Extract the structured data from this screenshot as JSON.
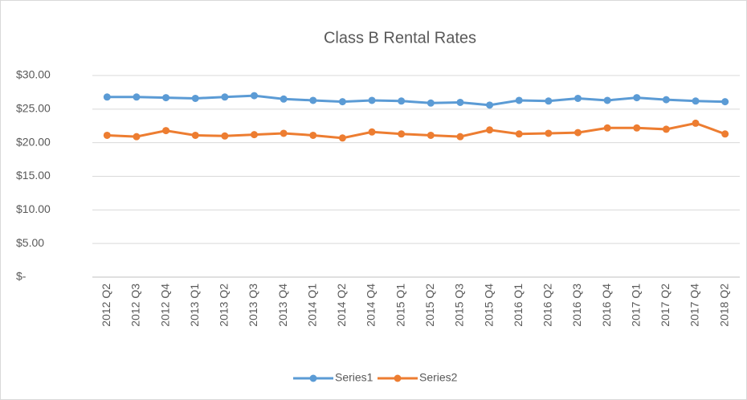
{
  "chart_data": {
    "type": "line",
    "title": "Class B Rental Rates",
    "categories": [
      "2012 Q2",
      "2012 Q3",
      "2012 Q4",
      "2013 Q1",
      "2013 Q2",
      "2013 Q3",
      "2013 Q4",
      "2014 Q1",
      "2014 Q2",
      "2014 Q4",
      "2015 Q1",
      "2015 Q2",
      "2015 Q3",
      "2015 Q4",
      "2016 Q1",
      "2016 Q2",
      "2016 Q3",
      "2016 Q4",
      "2017 Q1",
      "2017 Q2",
      "2017 Q4",
      "2018 Q2"
    ],
    "series": [
      {
        "name": "Series1",
        "color": "#5b9bd5",
        "values": [
          26.8,
          26.8,
          26.7,
          26.6,
          26.8,
          27.0,
          26.5,
          26.3,
          26.1,
          26.3,
          26.2,
          25.9,
          26.0,
          25.6,
          26.3,
          26.2,
          26.6,
          26.3,
          26.7,
          26.4,
          26.2,
          26.1
        ]
      },
      {
        "name": "Series2",
        "color": "#ed7d31",
        "values": [
          21.1,
          20.9,
          21.8,
          21.1,
          21.0,
          21.2,
          21.4,
          21.1,
          20.7,
          21.6,
          21.3,
          21.1,
          20.9,
          21.9,
          21.3,
          21.4,
          21.5,
          22.2,
          22.2,
          22.0,
          22.9,
          21.3
        ]
      }
    ],
    "ylim": [
      0,
      30
    ],
    "yticks": [
      {
        "value": 0,
        "label": "$-"
      },
      {
        "value": 5,
        "label": "$5.00"
      },
      {
        "value": 10,
        "label": "$10.00"
      },
      {
        "value": 15,
        "label": "$15.00"
      },
      {
        "value": 20,
        "label": "$20.00"
      },
      {
        "value": 25,
        "label": "$25.00"
      },
      {
        "value": 30,
        "label": "$30.00"
      }
    ],
    "grid": true,
    "legend": "bottom"
  }
}
